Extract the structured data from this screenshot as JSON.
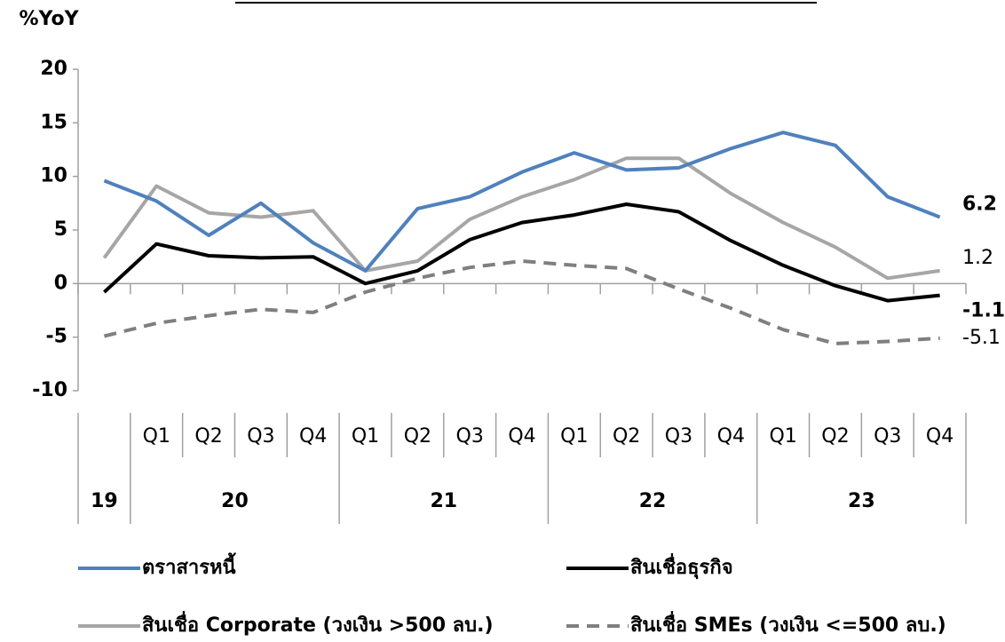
{
  "chart_data": {
    "type": "line",
    "y_axis_label": "%YoY",
    "categories": [
      null,
      "Q1",
      "Q2",
      "Q3",
      "Q4",
      "Q1",
      "Q2",
      "Q3",
      "Q4",
      "Q1",
      "Q2",
      "Q3",
      "Q4",
      "Q1",
      "Q2",
      "Q3",
      "Q4"
    ],
    "category_groups": [
      {
        "label": "19",
        "span": 1
      },
      {
        "label": "20",
        "span": 4
      },
      {
        "label": "21",
        "span": 4
      },
      {
        "label": "22",
        "span": 4
      },
      {
        "label": "23",
        "span": 4
      }
    ],
    "series": [
      {
        "name": "ตราสารหนี้",
        "color": "#4f81bd",
        "label_color": "#1f6fb5",
        "dash": false,
        "values": [
          9.6,
          7.7,
          4.5,
          7.5,
          3.8,
          1.2,
          7.0,
          8.1,
          10.4,
          12.2,
          10.6,
          10.8,
          12.6,
          14.1,
          12.9,
          8.1,
          6.2
        ]
      },
      {
        "name": "สินเชื่อธุรกิจ",
        "color": "#000000",
        "label_color": "#000000",
        "dash": false,
        "values": [
          -0.8,
          3.7,
          2.6,
          2.4,
          2.5,
          0.0,
          1.2,
          4.1,
          5.7,
          6.4,
          7.4,
          6.7,
          4.0,
          1.7,
          -0.2,
          -1.6,
          -1.1
        ]
      },
      {
        "name": "สินเชื่อ Corporate (วงเงิน >500 ลบ.)",
        "color": "#a6a6a6",
        "label_color": "#a6a6a6",
        "dash": false,
        "values": [
          2.4,
          9.1,
          6.6,
          6.2,
          6.8,
          1.2,
          2.1,
          6.0,
          8.1,
          9.7,
          11.7,
          11.7,
          8.4,
          5.7,
          3.4,
          0.5,
          1.2
        ]
      },
      {
        "name": "สินเชื่อ SMEs (วงเงิน <=500 ลบ.)",
        "color": "#7f7f7f",
        "label_color": "#808080",
        "dash": true,
        "values": [
          -4.9,
          -3.7,
          -3.0,
          -2.4,
          -2.7,
          -0.8,
          0.5,
          1.5,
          2.1,
          1.7,
          1.4,
          -0.5,
          -2.3,
          -4.3,
          -5.6,
          -5.4,
          -5.1
        ]
      }
    ],
    "ylim": [
      -10,
      20
    ],
    "yticks": [
      -10,
      -5,
      0,
      5,
      10,
      15,
      20
    ]
  }
}
